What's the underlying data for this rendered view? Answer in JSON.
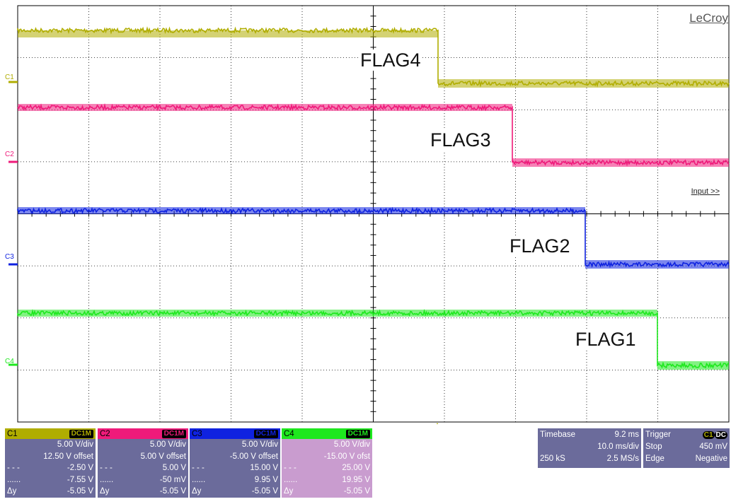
{
  "brand": "LeCroy",
  "input_label": "Input >>",
  "flags": [
    {
      "label": "FLAG4"
    },
    {
      "label": "FLAG3"
    },
    {
      "label": "FLAG2"
    },
    {
      "label": "FLAG1"
    }
  ],
  "traces": [
    {
      "name": "C1",
      "color": "#b0ad00"
    },
    {
      "name": "C2",
      "color": "#ef1a7a"
    },
    {
      "name": "C3",
      "color": "#0f22e0"
    },
    {
      "name": "C4",
      "color": "#1ee81e"
    }
  ],
  "channels": [
    {
      "name": "C1",
      "coupling": "DC1M",
      "color": "#b0ad00",
      "vdiv": "5.00 V/div",
      "offset": "12.50 V offset",
      "c1_sym": "- - -",
      "c1_val": "-2.50 V",
      "c2_sym": "......",
      "c2_val": "-7.55 V",
      "dy_sym": "Δy",
      "dy_val": "-5.05 V"
    },
    {
      "name": "C2",
      "coupling": "DC1M",
      "color": "#ef1a7a",
      "vdiv": "5.00 V/div",
      "offset": "5.00 V offset",
      "c1_sym": "- - -",
      "c1_val": "5.00 V",
      "c2_sym": "......",
      "c2_val": "-50 mV",
      "dy_sym": "Δy",
      "dy_val": "-5.05 V"
    },
    {
      "name": "C3",
      "coupling": "DC1M",
      "color": "#0f22e0",
      "vdiv": "5.00 V/div",
      "offset": "-5.00 V offset",
      "c1_sym": "- - -",
      "c1_val": "15.00 V",
      "c2_sym": "......",
      "c2_val": "9.95 V",
      "dy_sym": "Δy",
      "dy_val": "-5.05 V"
    },
    {
      "name": "C4",
      "coupling": "DC1M",
      "color": "#1ee81e",
      "vdiv": "5.00 V/div",
      "offset": "-15.00 V ofst",
      "c1_sym": "- - -",
      "c1_val": "25.00 V",
      "c2_sym": "......",
      "c2_val": "19.95 V",
      "dy_sym": "Δy",
      "dy_val": "-5.05 V"
    }
  ],
  "timebase": {
    "label": "Timebase",
    "delay": "9.2 ms",
    "tdiv": "10.0 ms/div",
    "samples": "250 kS",
    "rate": "2.5 MS/s"
  },
  "trigger": {
    "label": "Trigger",
    "source": "C1",
    "coupling": "DC",
    "mode": "Stop",
    "level": "450 mV",
    "type": "Edge",
    "slope": "Negative"
  }
}
